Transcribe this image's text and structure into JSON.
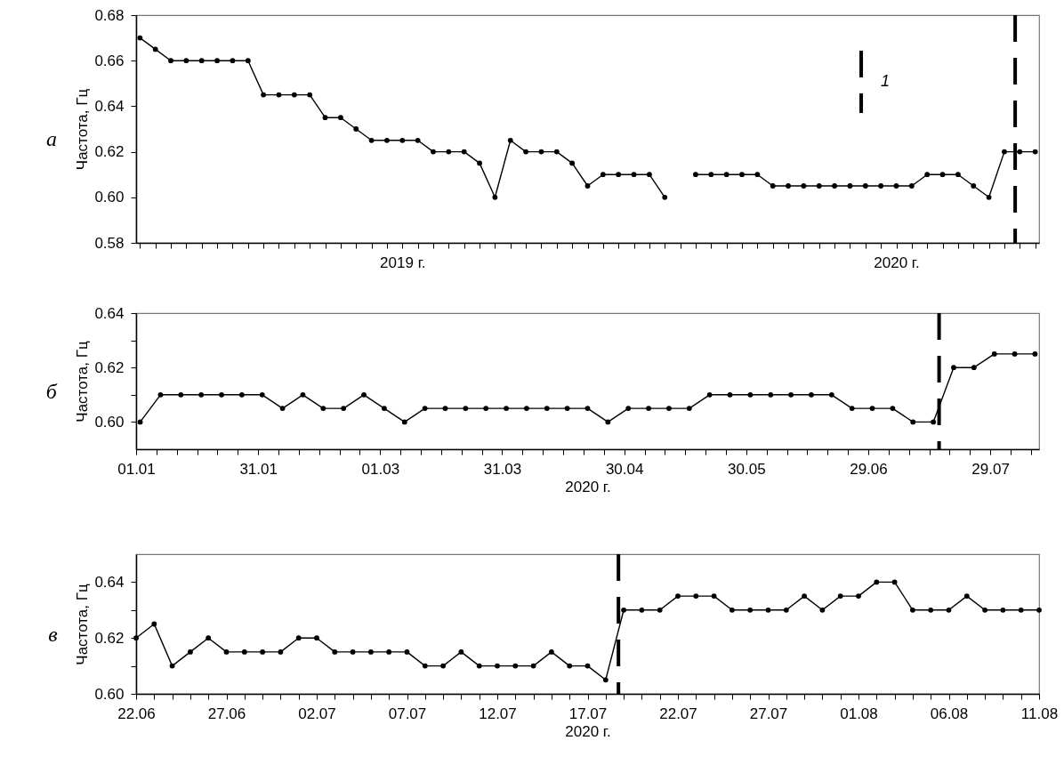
{
  "chart_data": [
    {
      "type": "line",
      "title": "а",
      "ylabel": "Частота, Гц",
      "marker": "circle",
      "annotations": [
        "1"
      ],
      "categories": [
        null,
        null,
        null,
        null,
        null,
        null,
        null,
        null,
        null,
        null,
        null,
        null,
        null,
        null,
        null,
        null,
        null,
        "2019 г.",
        null,
        null,
        null,
        null,
        null,
        null,
        null,
        null,
        null,
        null,
        null,
        null,
        null,
        null,
        null,
        null,
        null,
        null,
        null,
        null,
        null,
        null,
        null,
        null,
        null,
        null,
        null,
        null,
        null,
        null,
        null,
        "2020 г.",
        null,
        null,
        null,
        null,
        null,
        null,
        null,
        null,
        null
      ],
      "series": [
        {
          "color": "#000000",
          "values": [
            0.67,
            0.665,
            0.66,
            0.66,
            0.66,
            0.66,
            0.66,
            0.66,
            0.645,
            0.645,
            0.645,
            0.645,
            0.635,
            0.635,
            0.63,
            0.625,
            0.625,
            0.625,
            0.625,
            0.62,
            0.62,
            0.62,
            0.615,
            0.6,
            0.625,
            0.62,
            0.62,
            0.62,
            0.615,
            0.605,
            0.61,
            0.61,
            0.61,
            0.61,
            0.6,
            null,
            0.61,
            0.61,
            0.61,
            0.61,
            0.61,
            0.605,
            0.605,
            0.605,
            0.605,
            0.605,
            0.605,
            0.605,
            0.605,
            0.605,
            0.605,
            0.61,
            0.61,
            0.61,
            0.605,
            0.6,
            0.62,
            0.62,
            0.62
          ]
        }
      ],
      "ylim": [
        0.58,
        0.68
      ],
      "yticks": [
        {
          "value": 0.58,
          "label": "0.58"
        },
        {
          "value": 0.6,
          "label": "0.60"
        },
        {
          "value": 0.62,
          "label": "0.62"
        },
        {
          "value": 0.64,
          "label": "0.64"
        },
        {
          "value": 0.66,
          "label": "0.66"
        },
        {
          "value": 0.68,
          "label": "0.68"
        }
      ]
    },
    {
      "type": "line",
      "title": "б",
      "ylabel": "Частота, Гц",
      "xlabel": "2020 г.",
      "marker": "circle",
      "x": [
        "2020-01-02",
        "2020-01-07",
        "2020-01-12",
        "2020-01-17",
        "2020-01-22",
        "2020-01-27",
        "2020-02-01",
        "2020-02-06",
        "2020-02-11",
        "2020-02-16",
        "2020-02-21",
        "2020-02-26",
        "2020-03-02",
        "2020-03-07",
        "2020-03-12",
        "2020-03-17",
        "2020-03-22",
        "2020-03-27",
        "2020-04-01",
        "2020-04-06",
        "2020-04-11",
        "2020-04-16",
        "2020-04-21",
        "2020-04-26",
        "2020-05-01",
        "2020-05-06",
        "2020-05-11",
        "2020-05-16",
        "2020-05-21",
        "2020-05-26",
        "2020-05-31",
        "2020-06-05",
        "2020-06-10",
        "2020-06-15",
        "2020-06-20",
        "2020-06-25",
        "2020-06-30",
        "2020-07-05",
        "2020-07-10",
        "2020-07-15",
        "2020-07-20",
        "2020-07-25",
        "2020-07-30",
        "2020-08-04",
        "2020-08-09"
      ],
      "series": [
        {
          "color": "#000000",
          "values": [
            0.6,
            0.61,
            0.61,
            0.61,
            0.61,
            0.61,
            0.61,
            0.605,
            0.61,
            0.605,
            0.605,
            0.61,
            0.605,
            0.6,
            0.605,
            0.605,
            0.605,
            0.605,
            0.605,
            0.605,
            0.605,
            0.605,
            0.605,
            0.6,
            0.605,
            0.605,
            0.605,
            0.605,
            0.61,
            0.61,
            0.61,
            0.61,
            0.61,
            0.61,
            0.61,
            0.605,
            0.605,
            0.605,
            0.6,
            0.6,
            0.62,
            0.62,
            0.625,
            0.625,
            0.625
          ]
        }
      ],
      "xlim": [
        "2020-01-01",
        "2020-08-10"
      ],
      "xticks": [
        {
          "value": "2020-01-01",
          "label": "01.01"
        },
        {
          "value": "2020-01-06",
          "label": null
        },
        {
          "value": "2020-01-11",
          "label": null
        },
        {
          "value": "2020-01-16",
          "label": null
        },
        {
          "value": "2020-01-21",
          "label": null
        },
        {
          "value": "2020-01-26",
          "label": null
        },
        {
          "value": "2020-01-31",
          "label": "31.01"
        },
        {
          "value": "2020-02-05",
          "label": null
        },
        {
          "value": "2020-02-10",
          "label": null
        },
        {
          "value": "2020-02-15",
          "label": null
        },
        {
          "value": "2020-02-20",
          "label": null
        },
        {
          "value": "2020-02-25",
          "label": null
        },
        {
          "value": "2020-03-01",
          "label": "01.03"
        },
        {
          "value": "2020-03-06",
          "label": null
        },
        {
          "value": "2020-03-11",
          "label": null
        },
        {
          "value": "2020-03-16",
          "label": null
        },
        {
          "value": "2020-03-21",
          "label": null
        },
        {
          "value": "2020-03-26",
          "label": null
        },
        {
          "value": "2020-03-31",
          "label": "31.03"
        },
        {
          "value": "2020-04-05",
          "label": null
        },
        {
          "value": "2020-04-10",
          "label": null
        },
        {
          "value": "2020-04-15",
          "label": null
        },
        {
          "value": "2020-04-20",
          "label": null
        },
        {
          "value": "2020-04-25",
          "label": null
        },
        {
          "value": "2020-04-30",
          "label": "30.04"
        },
        {
          "value": "2020-05-05",
          "label": null
        },
        {
          "value": "2020-05-10",
          "label": null
        },
        {
          "value": "2020-05-15",
          "label": null
        },
        {
          "value": "2020-05-20",
          "label": null
        },
        {
          "value": "2020-05-25",
          "label": null
        },
        {
          "value": "2020-05-30",
          "label": "30.05"
        },
        {
          "value": "2020-06-04",
          "label": null
        },
        {
          "value": "2020-06-09",
          "label": null
        },
        {
          "value": "2020-06-14",
          "label": null
        },
        {
          "value": "2020-06-19",
          "label": null
        },
        {
          "value": "2020-06-24",
          "label": null
        },
        {
          "value": "2020-06-29",
          "label": "29.06"
        },
        {
          "value": "2020-07-04",
          "label": null
        },
        {
          "value": "2020-07-09",
          "label": null
        },
        {
          "value": "2020-07-14",
          "label": null
        },
        {
          "value": "2020-07-19",
          "label": null
        },
        {
          "value": "2020-07-24",
          "label": null
        },
        {
          "value": "2020-07-29",
          "label": "29.07"
        },
        {
          "value": "2020-08-03",
          "label": null
        },
        {
          "value": "2020-08-08",
          "label": null
        }
      ],
      "ylim": [
        0.59,
        0.64
      ],
      "yticks": [
        {
          "value": 0.6,
          "label": "0.60"
        },
        {
          "value": 0.61,
          "label": null
        },
        {
          "value": 0.62,
          "label": "0.62"
        },
        {
          "value": 0.63,
          "label": null
        },
        {
          "value": 0.64,
          "label": "0.64"
        }
      ],
      "ref_lines": [
        {
          "axis": "x",
          "value": "2020-07-16T10:00",
          "color": "#000000",
          "line_style": "dashed"
        }
      ]
    },
    {
      "type": "line",
      "title": "в",
      "ylabel": "Частота, Гц",
      "xlabel": "2020 г.",
      "marker": "circle",
      "x": [
        "2020-06-22",
        "2020-06-23",
        "2020-06-24",
        "2020-06-25",
        "2020-06-26",
        "2020-06-27",
        "2020-06-28",
        "2020-06-29",
        "2020-06-30",
        "2020-07-01",
        "2020-07-02",
        "2020-07-03",
        "2020-07-04",
        "2020-07-05",
        "2020-07-06",
        "2020-07-07",
        "2020-07-08",
        "2020-07-09",
        "2020-07-10",
        "2020-07-11",
        "2020-07-12",
        "2020-07-13",
        "2020-07-14",
        "2020-07-15",
        "2020-07-16",
        "2020-07-17",
        "2020-07-18",
        "2020-07-19",
        "2020-07-20",
        "2020-07-21",
        "2020-07-22",
        "2020-07-23",
        "2020-07-24",
        "2020-07-25",
        "2020-07-26",
        "2020-07-27",
        "2020-07-28",
        "2020-07-29",
        "2020-07-30",
        "2020-07-31",
        "2020-08-01",
        "2020-08-02",
        "2020-08-03",
        "2020-08-04",
        "2020-08-05",
        "2020-08-06",
        "2020-08-07",
        "2020-08-08",
        "2020-08-09",
        "2020-08-10",
        "2020-08-11"
      ],
      "series": [
        {
          "color": "#000000",
          "values": [
            0.62,
            0.625,
            0.61,
            0.615,
            0.62,
            0.615,
            0.615,
            0.615,
            0.615,
            0.62,
            0.62,
            0.615,
            0.615,
            0.615,
            0.615,
            0.615,
            0.61,
            0.61,
            0.615,
            0.61,
            0.61,
            0.61,
            0.61,
            0.615,
            0.61,
            0.61,
            0.605,
            0.63,
            0.63,
            0.63,
            0.635,
            0.635,
            0.635,
            0.63,
            0.63,
            0.63,
            0.63,
            0.635,
            0.63,
            0.635,
            0.635,
            0.64,
            0.64,
            0.63,
            0.63,
            0.63,
            0.635,
            0.63,
            0.63,
            0.63,
            0.63
          ]
        }
      ],
      "xlim": [
        "2020-06-22",
        "2020-08-11"
      ],
      "xticks": [
        {
          "value": "2020-06-22",
          "label": "22.06"
        },
        {
          "value": "2020-06-23",
          "label": null
        },
        {
          "value": "2020-06-24",
          "label": null
        },
        {
          "value": "2020-06-25",
          "label": null
        },
        {
          "value": "2020-06-26",
          "label": null
        },
        {
          "value": "2020-06-27",
          "label": "27.06"
        },
        {
          "value": "2020-06-28",
          "label": null
        },
        {
          "value": "2020-06-29",
          "label": null
        },
        {
          "value": "2020-06-30",
          "label": null
        },
        {
          "value": "2020-07-01",
          "label": null
        },
        {
          "value": "2020-07-02",
          "label": "02.07"
        },
        {
          "value": "2020-07-03",
          "label": null
        },
        {
          "value": "2020-07-04",
          "label": null
        },
        {
          "value": "2020-07-05",
          "label": null
        },
        {
          "value": "2020-07-06",
          "label": null
        },
        {
          "value": "2020-07-07",
          "label": "07.07"
        },
        {
          "value": "2020-07-08",
          "label": null
        },
        {
          "value": "2020-07-09",
          "label": null
        },
        {
          "value": "2020-07-10",
          "label": null
        },
        {
          "value": "2020-07-11",
          "label": null
        },
        {
          "value": "2020-07-12",
          "label": "12.07"
        },
        {
          "value": "2020-07-13",
          "label": null
        },
        {
          "value": "2020-07-14",
          "label": null
        },
        {
          "value": "2020-07-15",
          "label": null
        },
        {
          "value": "2020-07-16",
          "label": null
        },
        {
          "value": "2020-07-17",
          "label": "17.07"
        },
        {
          "value": "2020-07-18",
          "label": null
        },
        {
          "value": "2020-07-19",
          "label": null
        },
        {
          "value": "2020-07-20",
          "label": null
        },
        {
          "value": "2020-07-21",
          "label": null
        },
        {
          "value": "2020-07-22",
          "label": "22.07"
        },
        {
          "value": "2020-07-23",
          "label": null
        },
        {
          "value": "2020-07-24",
          "label": null
        },
        {
          "value": "2020-07-25",
          "label": null
        },
        {
          "value": "2020-07-26",
          "label": null
        },
        {
          "value": "2020-07-27",
          "label": "27.07"
        },
        {
          "value": "2020-07-28",
          "label": null
        },
        {
          "value": "2020-07-29",
          "label": null
        },
        {
          "value": "2020-07-30",
          "label": null
        },
        {
          "value": "2020-07-31",
          "label": null
        },
        {
          "value": "2020-08-01",
          "label": "01.08"
        },
        {
          "value": "2020-08-02",
          "label": null
        },
        {
          "value": "2020-08-03",
          "label": null
        },
        {
          "value": "2020-08-04",
          "label": null
        },
        {
          "value": "2020-08-05",
          "label": null
        },
        {
          "value": "2020-08-06",
          "label": "06.08"
        },
        {
          "value": "2020-08-07",
          "label": null
        },
        {
          "value": "2020-08-08",
          "label": null
        },
        {
          "value": "2020-08-09",
          "label": null
        },
        {
          "value": "2020-08-10",
          "label": null
        },
        {
          "value": "2020-08-11",
          "label": "11.08"
        }
      ],
      "ylim": [
        0.6,
        0.65
      ],
      "yticks": [
        {
          "value": 0.6,
          "label": "0.60"
        },
        {
          "value": 0.61,
          "label": null
        },
        {
          "value": 0.62,
          "label": "0.62"
        },
        {
          "value": 0.63,
          "label": null
        },
        {
          "value": 0.64,
          "label": "0.64"
        }
      ],
      "ref_lines": [
        {
          "axis": "x",
          "value": "2020-07-18T17:00",
          "color": "#000000",
          "line_style": "dashed"
        }
      ]
    }
  ]
}
